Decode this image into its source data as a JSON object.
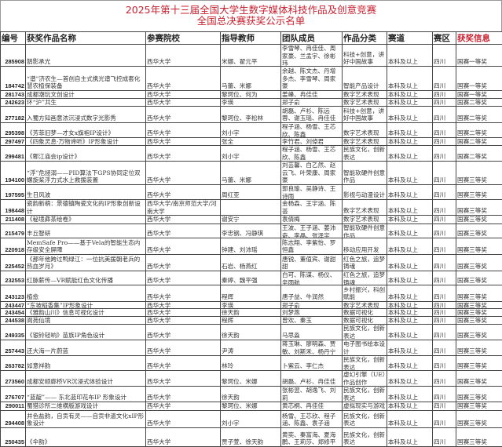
{
  "title": {
    "line1": "2025年第十三届全国大学生数字媒体科技作品及创意竞赛",
    "line2": "全国总决赛获奖公示名单"
  },
  "headers": [
    "编号",
    "获奖作品名称",
    "参赛院校",
    "指导教师",
    "团队成员",
    "作品分类",
    "赛道",
    "赛区",
    "获奖信息"
  ],
  "colors": {
    "title": "#c8202f",
    "award_header": "#c8202f"
  },
  "rows": [
    [
      "285908",
      "鹊影承光",
      "西华大学",
      "米娜、翟元平",
      "李雪琴、冉佳佳、周家豪、兰孟宇、徐彬玮",
      "科技+创意，讲好中国故事",
      "本科及以上",
      "四川",
      "国赛一等奖"
    ],
    [
      "184742",
      "“谱”济农生—首创自主式携光谱飞控成套化慧农植保装备",
      "西华大学",
      "马蕾、米娜",
      "余越、陈文杰、丹增多杰、李雪琴、周家豪",
      "智能产品设计",
      "本科及以上",
      "四川",
      "国赛一等奖"
    ],
    [
      "281743",
      "成都潮玩文创设计",
      "西华大学",
      "黎珂位、何为",
      "姜峰、冉佳佳",
      "数字艺术表现",
      "本科及以上",
      "四川",
      "国赛一等奖"
    ],
    [
      "242623",
      "环“沪”共生",
      "西华大学",
      "李瑛",
      "郑子俞",
      "数字艺术表现",
      "本科及以上",
      "四川",
      "国赛二等奖"
    ],
    [
      "277182",
      "入蜀方知画意浓沉浸式数字光影秀",
      "西华大学",
      "黎珂位、李松林",
      "胡磊、卢衫、陈远蓉、谢玉瑶、冉佳佳",
      "科技+创意，讲好中国故事",
      "本科及以上",
      "四川",
      "国赛二等奖"
    ],
    [
      "295398",
      "《芳菲旧梦—才女x旗袍IP设计》",
      "西华大学",
      "刘小宇",
      "程子涵、杨雪、王芯欣、陈鑫",
      "数字艺术表现",
      "本科及以上",
      "四川",
      "国赛二等奖"
    ],
    [
      "297497",
      "《四象灵息·万物谛听》IP形象设计",
      "西华大学",
      "张全",
      "李竹君、刘倬君",
      "数字艺术表现",
      "本科及以上",
      "四川",
      "国赛二等奖"
    ],
    [
      "299481",
      "《郫江庙会ip设计》",
      "西华大学",
      "刘小宇",
      "程子涵、杨雪、王芯欣、陈鑫",
      "民族文化，创新表达",
      "本科及以上",
      "四川",
      "国赛二等奖"
    ],
    [
      "194100",
      "“浮”危拯溺——PID算法下GPS协同定位双螺旋桨浮力式水上救援装置",
      "西华大学",
      "马蕾、米娜",
      "刘芸馨、白乙然、赵云飞、叶荣康、周家豪",
      "智能软硬件创意作品",
      "本科及以上",
      "四川",
      "国赛三等奖"
    ],
    [
      "197595",
      "生日风波",
      "西华大学",
      "周红亚",
      "郭良瑜、吴静诗、王诗雨",
      "影视与动漫设计",
      "本科及以上",
      "四川",
      "国赛三等奖"
    ],
    [
      "198448",
      "瓷韵新萌：景德镇陶瓷文化的IP形象创新设计",
      "西华大学/南京师范大学/河南大学",
      "",
      "金杨森、王宇涵、陈荟",
      "数字艺术表现",
      "本科及以上",
      "四川",
      "国赛三等奖"
    ],
    [
      "211408",
      "《秘境彝茶绘卷》",
      "西华大学",
      "谢安宁",
      "袁倩梅",
      "数字艺术表现",
      "本科及以上",
      "四川",
      "国赛三等奖"
    ],
    [
      "215479",
      "丰丘智研",
      "西华大学",
      "李忠钢、冯静琪",
      "王波、王子涵、姜沛奇、李晶、张泽宇",
      "智能软硬件创意作品",
      "本科及以上",
      "四川",
      "国赛三等奖"
    ],
    [
      "220918",
      "MemSafe Pro——基于Vela的智能生态内存级安全屏障",
      "西华大学",
      "钟建、刘沛瑶",
      "陈志翔、李紫怡、罗恒鑫",
      "移动应用开发",
      "本科及以上",
      "四川",
      "国赛三等奖"
    ],
    [
      "225452",
      "《那年他跨过鸭绿江：一位抗美援朝老兵的热血岁月》",
      "西华大学",
      "石岩、杨燕红",
      "唐锐、董值宾、谢甜甜",
      "红色之旅，追梦铸魂",
      "本科及以上",
      "四川",
      "国赛三等奖"
    ],
    [
      "232553",
      "红脉薪传—VR赋能红色文化传播",
      "西华大学",
      "秦婷、魏平强",
      "白可、陈谋、杨仪、辛雨航",
      "红色之旅，追梦铸魂",
      "本科及以上",
      "四川",
      "国赛三等奖"
    ],
    [
      "243123",
      "植愈",
      "西华大学",
      "程辉",
      "唐子益、牛润然",
      "乡村振兴，科创赋能",
      "本科及以上",
      "四川",
      "国赛三等奖"
    ],
    [
      "243447",
      "“东坡稻香集”IP形象设计",
      "西华大学",
      "李瑛",
      "郑子俞",
      "数字艺术表现",
      "本科及以上",
      "四川",
      "国赛三等奖"
    ],
    [
      "243454",
      "《雅韵山川》信息可视化设计",
      "西华大学",
      "徐天韵",
      "刘梦燕",
      "数据可视化",
      "本科及以上",
      "四川",
      "国赛三等奖"
    ],
    [
      "244538",
      "阆苑仙境",
      "西华大学",
      "程辉",
      "曾欢、秦玉",
      "数据可视化",
      "本科及以上",
      "四川",
      "国赛三等奖"
    ],
    [
      "249335",
      "《银铃轻响》苗族IP角色设计",
      "西华大学",
      "徐天韵",
      "马思淼",
      "民族文化，创新表达",
      "本科及以上",
      "四川",
      "国赛三等奖"
    ],
    [
      "257443",
      "还大海一片蔚蓝",
      "西华大学",
      "尹涛",
      "蒋玉琳、廖明森、贾敏、刘斯禾、杨丹宁",
      "电子图书绘本设计",
      "本科及以上",
      "四川",
      "国赛三等奖"
    ],
    [
      "263782",
      "如意祥韵",
      "西华大学",
      "林玲",
      "卜紫云、李仁杰",
      "民族文化，创新表达",
      "本科及以上",
      "四川",
      "国赛三等奖"
    ],
    [
      "273560",
      "成都安顺廊桥VR沉浸式体验设计",
      "西华大学",
      "黎珂位、米娜",
      "胡磊、卢衫、冉佳佳",
      "虚幻引擎（UE）作品创作",
      "本科及以上",
      "四川",
      "国赛三等奖"
    ],
    [
      "276707",
      "“蓝靛”—— 东北蓝印花布IP 形象设计",
      "西华大学",
      "徐天韵",
      "张彬翌、胡逸飞、刘莉",
      "民族文化，创新表达",
      "本科及以上",
      "四川",
      "国赛三等奖"
    ],
    [
      "290011",
      "蜀猎诊所二维横版游戏设计",
      "西华大学",
      "黎珂位、米娜",
      "黄芯桐、冉佳佳",
      "虚拟现实与游戏",
      "本科及以上",
      "四川",
      "国赛三等奖"
    ],
    [
      "294408",
      "井色盐韵，自贡有灵——自贡非遗文化xIP形象设计",
      "西华大学",
      "刘小宇",
      "杨雪、王芯欣、程子涵、陈鑫、袁子涵",
      "民族文化，创新表达",
      "本科及以上",
      "四川",
      "国赛三等奖"
    ],
    [
      "250435",
      "《伞韵》",
      "西华大学",
      "贾子萱、徐天韵",
      "黄奕、秦富海、夏海鹏、王莉莎、郑修平",
      "民族文化，创新表达",
      "本科及以上",
      "四川",
      "国赛三等奖"
    ]
  ]
}
